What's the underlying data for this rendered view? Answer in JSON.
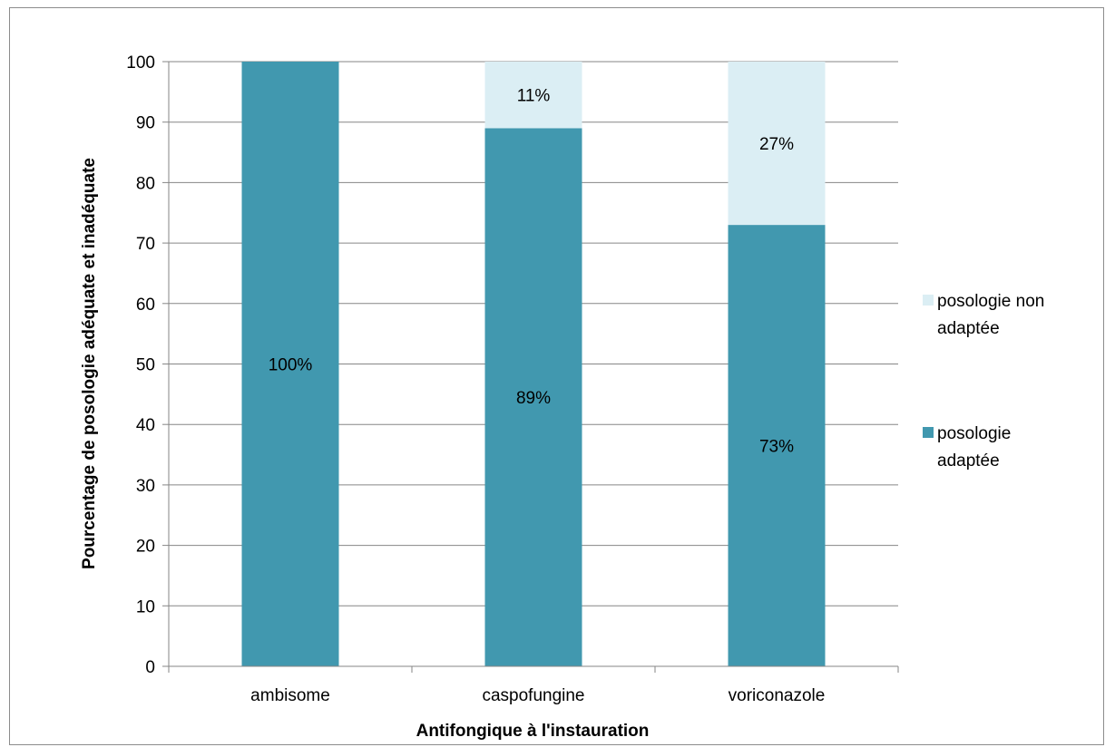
{
  "chart_data": {
    "type": "bar",
    "stacked": true,
    "categories": [
      "ambisome",
      "caspofungine",
      "voriconazole"
    ],
    "series": [
      {
        "name": "posologie adaptée",
        "values": [
          100,
          89,
          73
        ],
        "labels": [
          "100%",
          "89%",
          "73%"
        ],
        "color": "#4198AF"
      },
      {
        "name": "posologie non adaptée",
        "values": [
          0,
          11,
          27
        ],
        "labels": [
          "",
          "11%",
          "27%"
        ],
        "color": "#DBEEF4"
      }
    ],
    "xlabel": "Antifongique à l'instauration",
    "ylabel": "Pourcentage de posologie adéquate et inadéquate",
    "ylim": [
      0,
      100
    ],
    "yticks": [
      0,
      10,
      20,
      30,
      40,
      50,
      60,
      70,
      80,
      90,
      100
    ],
    "grid": true,
    "legend": {
      "position": "right",
      "entries": [
        {
          "lines": [
            "posologie non",
            "adaptée"
          ],
          "color": "#DBEEF4"
        },
        {
          "lines": [
            "posologie",
            "adaptée"
          ],
          "color": "#4198AF"
        }
      ]
    }
  }
}
